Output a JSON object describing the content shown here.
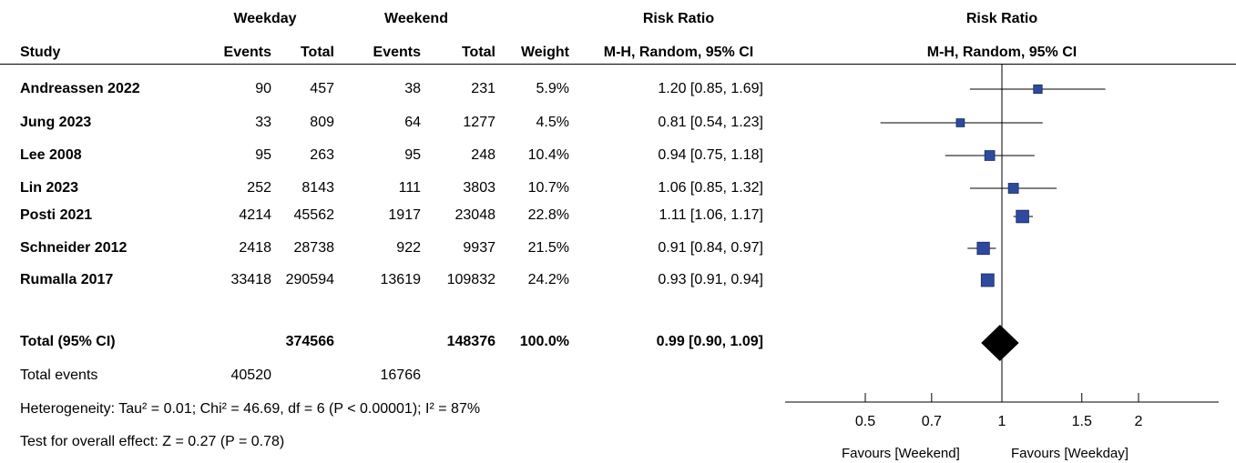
{
  "header": {
    "group1": "Weekday",
    "group2": "Weekend",
    "rr_top": "Risk Ratio",
    "rr_sub": "M-H, Random, 95% CI",
    "plot_top": "Risk Ratio",
    "plot_sub": "M-H, Random, 95% CI",
    "study": "Study",
    "events1": "Events",
    "total1": "Total",
    "events2": "Events",
    "total2": "Total",
    "weight": "Weight"
  },
  "studies": [
    {
      "name": "Andreassen 2022",
      "e1": "90",
      "t1": "457",
      "e2": "38",
      "t2": "231",
      "weight": "5.9%",
      "ci": "1.20 [0.85, 1.69]"
    },
    {
      "name": "Jung 2023",
      "e1": "33",
      "t1": "809",
      "e2": "64",
      "t2": "1277",
      "weight": "4.5%",
      "ci": "0.81 [0.54, 1.23]"
    },
    {
      "name": "Lee 2008",
      "e1": "95",
      "t1": "263",
      "e2": "95",
      "t2": "248",
      "weight": "10.4%",
      "ci": "0.94 [0.75, 1.18]"
    },
    {
      "name": "Lin 2023",
      "e1": "252",
      "t1": "8143",
      "e2": "111",
      "t2": "3803",
      "weight": "10.7%",
      "ci": "1.06 [0.85, 1.32]"
    },
    {
      "name": "Posti 2021",
      "e1": "4214",
      "t1": "45562",
      "e2": "1917",
      "t2": "23048",
      "weight": "22.8%",
      "ci": "1.11 [1.06, 1.17]"
    },
    {
      "name": "Schneider 2012",
      "e1": "2418",
      "t1": "28738",
      "e2": "922",
      "t2": "9937",
      "weight": "21.5%",
      "ci": "0.91 [0.84, 0.97]"
    },
    {
      "name": "Rumalla 2017",
      "e1": "33418",
      "t1": "290594",
      "e2": "13619",
      "t2": "109832",
      "weight": "24.2%",
      "ci": "0.93 [0.91, 0.94]"
    }
  ],
  "total": {
    "label": "Total (95% CI)",
    "t1": "374566",
    "t2": "148376",
    "weight": "100.0%",
    "ci": "0.99 [0.90, 1.09]"
  },
  "events": {
    "label": "Total events",
    "e1": "40520",
    "e2": "16766"
  },
  "heterogeneity": "Heterogeneity: Tau² = 0.01; Chi² = 46.69, df = 6 (P < 0.00001); I² = 87%",
  "overall_effect": "Test for overall effect: Z = 0.27 (P = 0.78)",
  "axis": {
    "favours_left": "Favours [Weekend]",
    "favours_right": "Favours [Weekday]"
  },
  "chart_data": {
    "type": "forest",
    "scale": "log",
    "xlim": [
      0.4,
      3.0
    ],
    "ticks": [
      0.5,
      0.7,
      1,
      1.5,
      2
    ],
    "tick_labels": [
      "0.5",
      "0.7",
      "1",
      "1.5",
      "2"
    ],
    "null_value": 1,
    "colors": {
      "study_marker": "#2e4a9e",
      "pooled_diamond": "#000000"
    },
    "studies": [
      {
        "name": "Andreassen 2022",
        "rr": 1.2,
        "lo": 0.85,
        "hi": 1.69,
        "weight": 5.9
      },
      {
        "name": "Jung 2023",
        "rr": 0.81,
        "lo": 0.54,
        "hi": 1.23,
        "weight": 4.5
      },
      {
        "name": "Lee 2008",
        "rr": 0.94,
        "lo": 0.75,
        "hi": 1.18,
        "weight": 10.4
      },
      {
        "name": "Lin 2023",
        "rr": 1.06,
        "lo": 0.85,
        "hi": 1.32,
        "weight": 10.7
      },
      {
        "name": "Posti 2021",
        "rr": 1.11,
        "lo": 1.06,
        "hi": 1.17,
        "weight": 22.8
      },
      {
        "name": "Schneider 2012",
        "rr": 0.91,
        "lo": 0.84,
        "hi": 0.97,
        "weight": 21.5
      },
      {
        "name": "Rumalla 2017",
        "rr": 0.93,
        "lo": 0.91,
        "hi": 0.94,
        "weight": 24.2
      }
    ],
    "pooled": {
      "rr": 0.99,
      "lo": 0.9,
      "hi": 1.09
    }
  }
}
